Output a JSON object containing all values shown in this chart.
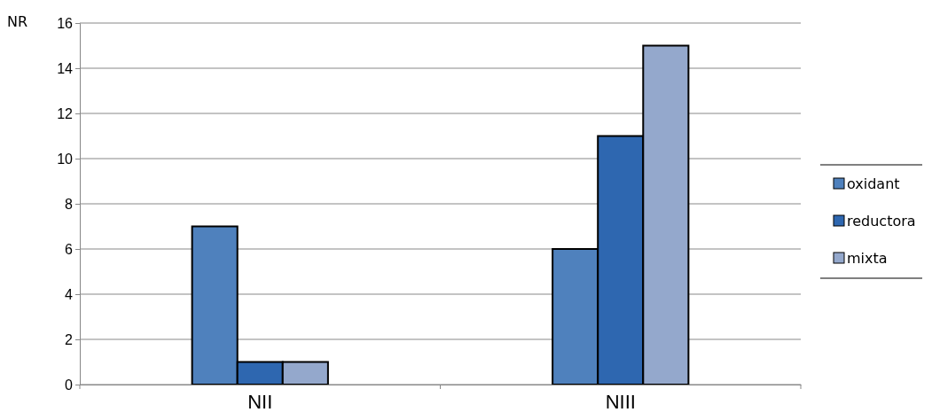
{
  "chart_data": {
    "type": "bar",
    "ylabel": "NR",
    "categories": [
      "NII",
      "NIII"
    ],
    "series": [
      {
        "name": "oxidant",
        "color": "#4f81bd",
        "values": [
          7,
          6
        ]
      },
      {
        "name": "reductora",
        "color": "#2e67b0",
        "values": [
          1,
          11
        ]
      },
      {
        "name": "mixta",
        "color": "#94a8cc",
        "values": [
          1,
          15
        ]
      }
    ],
    "ylim": [
      0,
      16
    ],
    "yticks": [
      0,
      2,
      4,
      6,
      8,
      10,
      12,
      14,
      16
    ],
    "grid": "y",
    "legend": "right"
  }
}
